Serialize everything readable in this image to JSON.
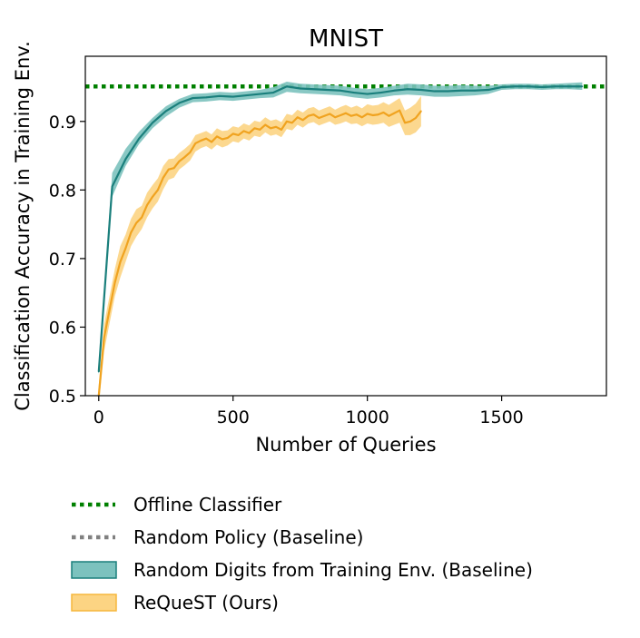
{
  "chart_data": {
    "type": "line",
    "title": "MNIST",
    "xlabel": "Number of Queries",
    "ylabel": "Classification Accuracy in Training Env.",
    "xlim": [
      -50,
      1890
    ],
    "ylim": [
      0.5,
      0.995
    ],
    "xticks": [
      0,
      500,
      1000,
      1500
    ],
    "yticks": [
      0.5,
      0.6,
      0.7,
      0.8,
      0.9
    ],
    "xtick_labels": [
      "0",
      "500",
      "1000",
      "1500"
    ],
    "ytick_labels": [
      "0.5",
      "0.6",
      "0.7",
      "0.8",
      "0.9"
    ],
    "grid": false,
    "legend_position": "below",
    "hlines": [
      {
        "name": "Offline Classifier",
        "y": 0.951,
        "color": "#008000",
        "style": "dotted"
      }
    ],
    "series": [
      {
        "name": "Random Digits from Training Env. (Baseline)",
        "color": "#1a7f7c",
        "fill": "#7cc2be",
        "x": [
          0,
          50,
          100,
          150,
          200,
          250,
          300,
          350,
          400,
          450,
          500,
          550,
          600,
          650,
          700,
          750,
          800,
          850,
          900,
          950,
          1000,
          1050,
          1100,
          1150,
          1200,
          1250,
          1300,
          1350,
          1400,
          1450,
          1500,
          1550,
          1600,
          1650,
          1700,
          1750,
          1800
        ],
        "y": [
          0.535,
          0.805,
          0.845,
          0.875,
          0.898,
          0.915,
          0.927,
          0.934,
          0.935,
          0.937,
          0.936,
          0.938,
          0.94,
          0.942,
          0.951,
          0.948,
          0.947,
          0.946,
          0.945,
          0.942,
          0.94,
          0.942,
          0.945,
          0.947,
          0.946,
          0.944,
          0.944,
          0.945,
          0.945,
          0.946,
          0.95,
          0.951,
          0.951,
          0.95,
          0.951,
          0.951,
          0.951
        ],
        "lower": [
          0.53,
          0.79,
          0.835,
          0.867,
          0.89,
          0.907,
          0.92,
          0.928,
          0.929,
          0.931,
          0.93,
          0.932,
          0.934,
          0.935,
          0.943,
          0.941,
          0.94,
          0.939,
          0.938,
          0.935,
          0.933,
          0.935,
          0.938,
          0.939,
          0.938,
          0.936,
          0.936,
          0.937,
          0.938,
          0.94,
          0.946,
          0.947,
          0.947,
          0.946,
          0.947,
          0.947,
          0.946
        ],
        "upper": [
          0.54,
          0.825,
          0.86,
          0.885,
          0.905,
          0.922,
          0.933,
          0.94,
          0.941,
          0.943,
          0.942,
          0.944,
          0.946,
          0.95,
          0.958,
          0.955,
          0.954,
          0.953,
          0.952,
          0.949,
          0.947,
          0.949,
          0.952,
          0.955,
          0.954,
          0.952,
          0.952,
          0.953,
          0.952,
          0.952,
          0.954,
          0.955,
          0.955,
          0.954,
          0.955,
          0.956,
          0.957
        ]
      },
      {
        "name": "ReQueST (Ours)",
        "color": "#f0a320",
        "fill": "#fcd483",
        "x": [
          0,
          20,
          40,
          60,
          80,
          100,
          120,
          140,
          160,
          180,
          200,
          220,
          240,
          260,
          280,
          300,
          320,
          340,
          360,
          380,
          400,
          420,
          440,
          460,
          480,
          500,
          520,
          540,
          560,
          580,
          600,
          620,
          640,
          660,
          680,
          700,
          720,
          740,
          760,
          780,
          800,
          820,
          840,
          860,
          880,
          900,
          920,
          940,
          960,
          980,
          1000,
          1020,
          1040,
          1060,
          1080,
          1100,
          1120,
          1140,
          1160,
          1180,
          1200
        ],
        "y": [
          0.5,
          0.585,
          0.625,
          0.665,
          0.695,
          0.715,
          0.738,
          0.752,
          0.76,
          0.778,
          0.79,
          0.8,
          0.818,
          0.83,
          0.832,
          0.842,
          0.848,
          0.855,
          0.868,
          0.872,
          0.875,
          0.87,
          0.878,
          0.874,
          0.876,
          0.882,
          0.88,
          0.886,
          0.883,
          0.89,
          0.888,
          0.895,
          0.89,
          0.892,
          0.888,
          0.9,
          0.898,
          0.906,
          0.902,
          0.908,
          0.91,
          0.905,
          0.908,
          0.911,
          0.906,
          0.909,
          0.912,
          0.908,
          0.91,
          0.906,
          0.911,
          0.909,
          0.91,
          0.913,
          0.908,
          0.912,
          0.916,
          0.898,
          0.9,
          0.905,
          0.915
        ],
        "lower": [
          0.485,
          0.565,
          0.605,
          0.645,
          0.672,
          0.695,
          0.718,
          0.732,
          0.743,
          0.76,
          0.773,
          0.783,
          0.801,
          0.815,
          0.818,
          0.83,
          0.836,
          0.843,
          0.856,
          0.861,
          0.864,
          0.859,
          0.866,
          0.862,
          0.865,
          0.871,
          0.869,
          0.875,
          0.872,
          0.879,
          0.877,
          0.884,
          0.879,
          0.881,
          0.877,
          0.889,
          0.887,
          0.895,
          0.891,
          0.897,
          0.899,
          0.894,
          0.897,
          0.9,
          0.895,
          0.897,
          0.9,
          0.896,
          0.897,
          0.893,
          0.897,
          0.895,
          0.896,
          0.898,
          0.892,
          0.895,
          0.898,
          0.88,
          0.88,
          0.884,
          0.893
        ],
        "upper": [
          0.515,
          0.605,
          0.645,
          0.685,
          0.718,
          0.735,
          0.758,
          0.772,
          0.777,
          0.796,
          0.807,
          0.817,
          0.835,
          0.845,
          0.846,
          0.854,
          0.86,
          0.867,
          0.88,
          0.883,
          0.886,
          0.881,
          0.89,
          0.886,
          0.887,
          0.893,
          0.891,
          0.897,
          0.894,
          0.901,
          0.899,
          0.906,
          0.901,
          0.903,
          0.899,
          0.911,
          0.909,
          0.917,
          0.913,
          0.919,
          0.921,
          0.916,
          0.919,
          0.922,
          0.917,
          0.921,
          0.924,
          0.92,
          0.923,
          0.919,
          0.925,
          0.923,
          0.924,
          0.928,
          0.924,
          0.929,
          0.934,
          0.916,
          0.92,
          0.926,
          0.937
        ]
      }
    ],
    "legend": [
      {
        "label": "Offline Classifier",
        "kind": "dotted-line",
        "color": "#008000"
      },
      {
        "label": "Random Policy (Baseline)",
        "kind": "dotted-line",
        "color": "#808080"
      },
      {
        "label": "Random Digits from Training Env. (Baseline)",
        "kind": "patch",
        "color": "#7cc2be",
        "edge": "#1a7f7c"
      },
      {
        "label": "ReQueST (Ours)",
        "kind": "patch",
        "color": "#fcd483",
        "edge": "#f6b73c"
      }
    ]
  }
}
